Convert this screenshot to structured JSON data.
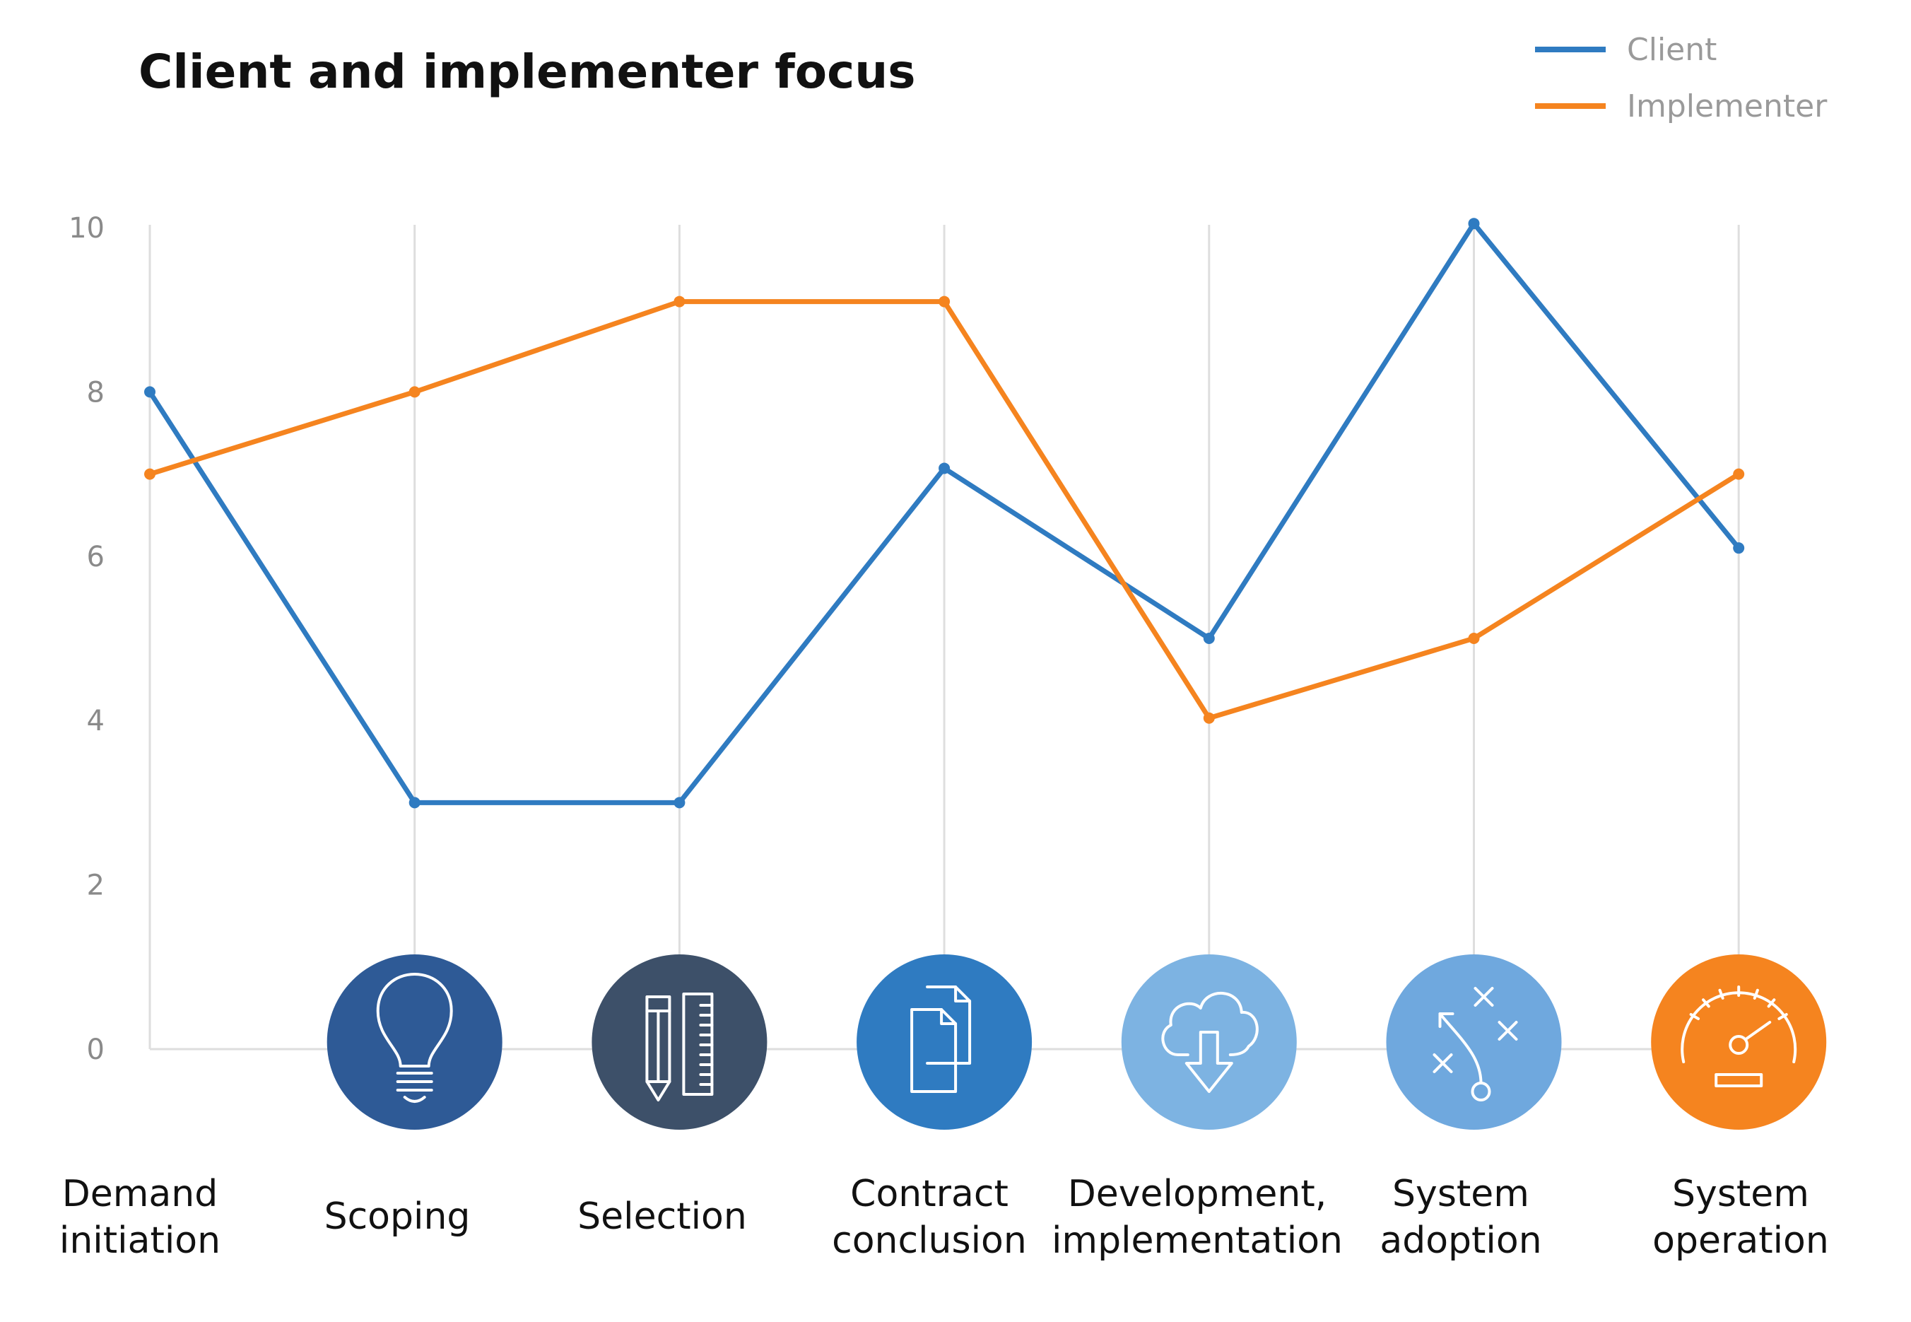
{
  "chart_data": {
    "type": "line",
    "title": "Client and implementer focus",
    "xlabel": "",
    "ylabel": "",
    "ylim": [
      0,
      10
    ],
    "yticks": [
      "0",
      "2",
      "4",
      "6",
      "8",
      "10"
    ],
    "categories": [
      [
        "Demand",
        "initiation"
      ],
      [
        "Scoping"
      ],
      [
        "Selection"
      ],
      [
        "Contract",
        "conclusion"
      ],
      [
        "Development,",
        "implementation"
      ],
      [
        "System",
        "adoption"
      ],
      [
        "System",
        "operation"
      ]
    ],
    "series": [
      {
        "name": "Client",
        "color": "#2f7bc1",
        "values": [
          8,
          3,
          3,
          7.07,
          5,
          10.05,
          6.1
        ]
      },
      {
        "name": "Implementer",
        "color": "#f5841f",
        "values": [
          7,
          8,
          9.1,
          9.1,
          4.03,
          5,
          7
        ]
      }
    ],
    "legend_position": "top-right",
    "grid": "vertical",
    "icons": [
      {
        "name": "lightbulb-icon",
        "color": "#2e5a96"
      },
      {
        "name": "pencil-ruler-icon",
        "color": "#3d5069"
      },
      {
        "name": "documents-icon",
        "color": "#2f7bc1"
      },
      {
        "name": "cloud-download-icon",
        "color": "#7db3e2"
      },
      {
        "name": "strategy-play-icon",
        "color": "#6fa8de"
      },
      {
        "name": "speedometer-icon",
        "color": "#f5841f"
      }
    ]
  }
}
